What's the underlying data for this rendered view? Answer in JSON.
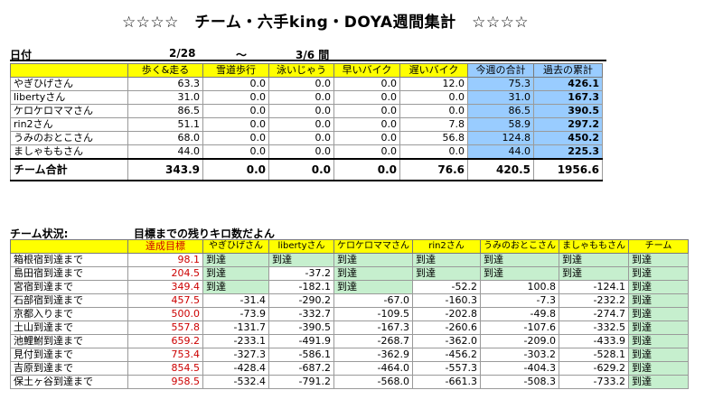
{
  "title": "☆☆☆☆　チーム・六手king・DOYA週間集計　☆☆☆☆",
  "date_row": {
    "label": "日付",
    "start": "2/28",
    "sep": "～",
    "end": "3/6 間"
  },
  "weekly": {
    "headers": [
      "歩く&走る",
      "雪道歩行",
      "泳いじゃう",
      "早いバイク",
      "遅いバイク",
      "今週の合計",
      "過去の累計"
    ],
    "rows": [
      {
        "name": "やぎひげさん",
        "values": [
          "63.3",
          "0.0",
          "0.0",
          "0.0",
          "12.0",
          "75.3",
          "426.1"
        ]
      },
      {
        "name": "libertyさん",
        "values": [
          "31.0",
          "0.0",
          "0.0",
          "0.0",
          "0.0",
          "31.0",
          "167.3"
        ]
      },
      {
        "name": "ケロケロママさん",
        "values": [
          "86.5",
          "0.0",
          "0.0",
          "0.0",
          "0.0",
          "86.5",
          "390.5"
        ]
      },
      {
        "name": "rin2さん",
        "values": [
          "51.1",
          "0.0",
          "0.0",
          "0.0",
          "7.8",
          "58.9",
          "297.2"
        ]
      },
      {
        "name": "うみのおとこさん",
        "values": [
          "68.0",
          "0.0",
          "0.0",
          "0.0",
          "56.8",
          "124.8",
          "450.2"
        ]
      },
      {
        "name": "ましゃももさん",
        "values": [
          "44.0",
          "0.0",
          "0.0",
          "0.0",
          "0.0",
          "44.0",
          "225.3"
        ]
      }
    ],
    "total": {
      "name": "チーム合計",
      "values": [
        "343.9",
        "0.0",
        "0.0",
        "0.0",
        "76.6",
        "420.5",
        "1956.6"
      ]
    }
  },
  "status": {
    "label": "チーム状況:",
    "subtitle": "目標までの残りキロ数だよん",
    "headers": [
      "達成目標",
      "やぎひげさん",
      "libertyさん",
      "ケロケロママさん",
      "rin2さん",
      "うみのおとこさん",
      "ましゃももさん",
      "チーム"
    ],
    "done_label": "到達",
    "rows": [
      {
        "name": "箱根宿到達まで",
        "target": "98.1",
        "cells": [
          "到達",
          "到達",
          "到達",
          "到達",
          "到達",
          "到達",
          "到達"
        ]
      },
      {
        "name": "島田宿到達まで",
        "target": "204.5",
        "cells": [
          "到達",
          "-37.2",
          "到達",
          "到達",
          "到達",
          "到達",
          "到達"
        ]
      },
      {
        "name": "宮宿到達まで",
        "target": "349.4",
        "cells": [
          "到達",
          "-182.1",
          "到達",
          "-52.2",
          "100.8",
          "-124.1",
          "到達"
        ]
      },
      {
        "name": "石部宿到達まで",
        "target": "457.5",
        "cells": [
          "-31.4",
          "-290.2",
          "-67.0",
          "-160.3",
          "-7.3",
          "-232.2",
          "到達"
        ]
      },
      {
        "name": "京都入りまで",
        "target": "500.0",
        "cells": [
          "-73.9",
          "-332.7",
          "-109.5",
          "-202.8",
          "-49.8",
          "-274.7",
          "到達"
        ]
      },
      {
        "name": "土山到達まで",
        "target": "557.8",
        "cells": [
          "-131.7",
          "-390.5",
          "-167.3",
          "-260.6",
          "-107.6",
          "-332.5",
          "到達"
        ]
      },
      {
        "name": "池鯉鮒到達まで",
        "target": "659.2",
        "cells": [
          "-233.1",
          "-491.9",
          "-268.7",
          "-362.0",
          "-209.0",
          "-433.9",
          "到達"
        ]
      },
      {
        "name": "見付到達まで",
        "target": "753.4",
        "cells": [
          "-327.3",
          "-586.1",
          "-362.9",
          "-456.2",
          "-303.2",
          "-528.1",
          "到達"
        ]
      },
      {
        "name": "吉原到達まで",
        "target": "854.5",
        "cells": [
          "-428.4",
          "-687.2",
          "-464.0",
          "-557.3",
          "-404.3",
          "-629.2",
          "到達"
        ]
      },
      {
        "name": "保土ヶ谷到達まで",
        "target": "958.5",
        "cells": [
          "-532.4",
          "-791.2",
          "-568.0",
          "-661.3",
          "-508.3",
          "-733.2",
          "到達"
        ]
      }
    ]
  },
  "colors": {
    "header_bg": "#ffff00",
    "blue_bg": "#99ccff",
    "done_bg": "#c6efce",
    "target_text": "#cc0000"
  }
}
